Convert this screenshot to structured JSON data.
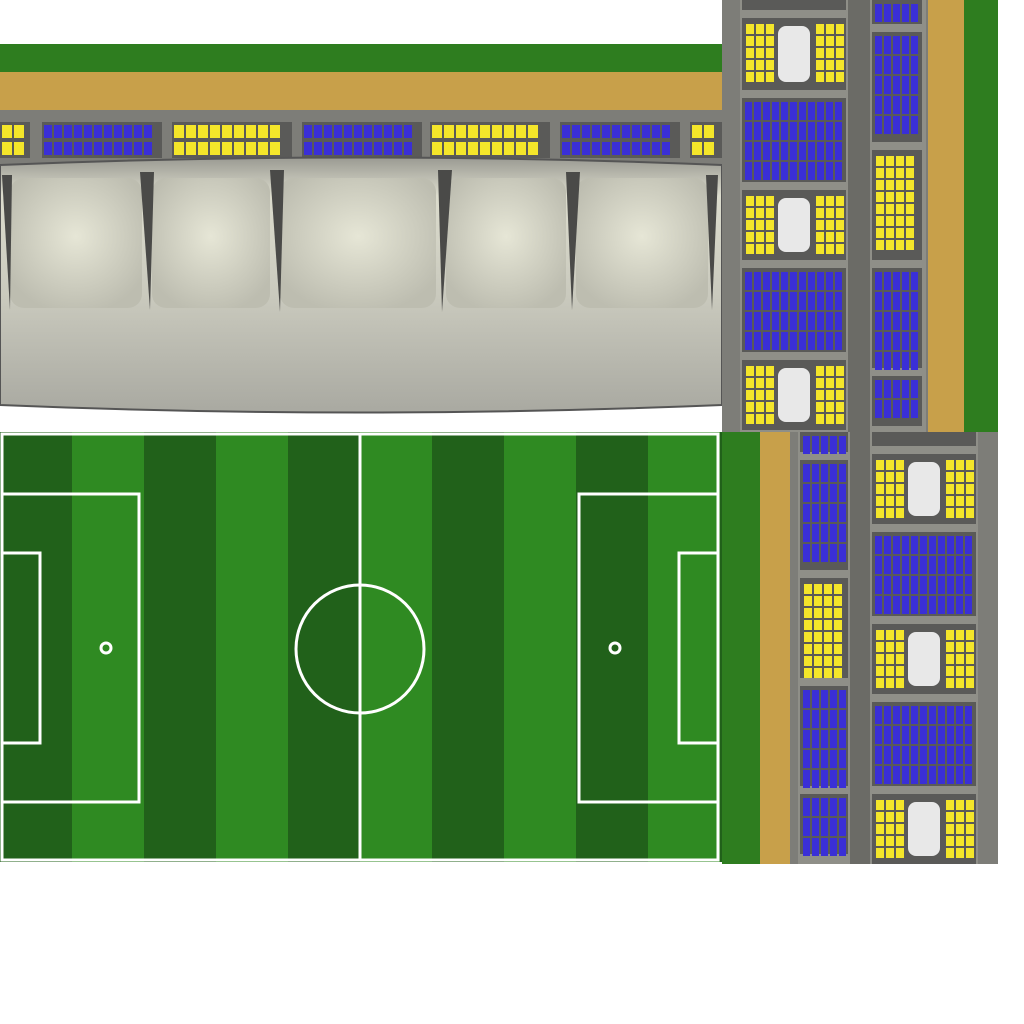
{
  "texture_atlas": {
    "pitch": {
      "stripe_light": "#2f8a22",
      "stripe_dark": "#21611a",
      "line_color": "#ffffff"
    },
    "stand": {
      "seat_blue": "#3a2fd6",
      "seat_yellow": "#f4e62a",
      "frame_gray": "#8a8a85",
      "track_tan": "#c8a04a",
      "grass_edge": "#2e7d1f",
      "roof_color": "#cfcfc2"
    }
  }
}
